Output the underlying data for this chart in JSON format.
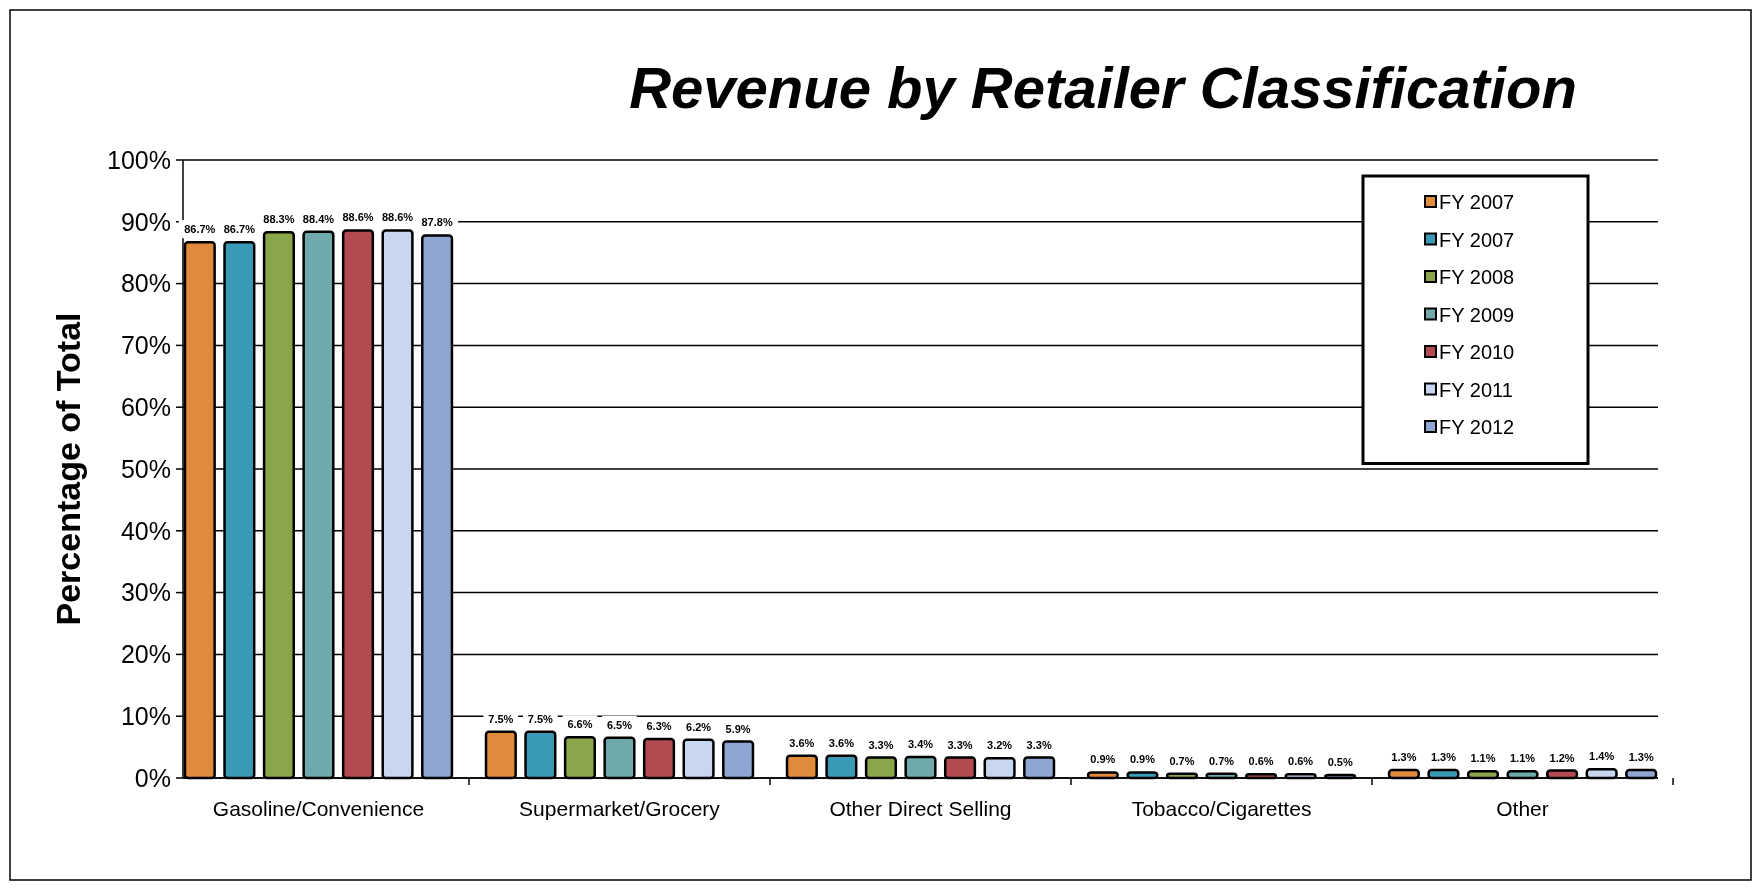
{
  "chart_data": {
    "type": "bar",
    "title": "Revenue by Retailer Classification",
    "ylabel": "Percentage of Total",
    "categories": [
      "Gasoline/Convenience",
      "Supermarket/Grocery",
      "Other Direct Selling",
      "Tobacco/Cigarettes",
      "Other"
    ],
    "series": [
      {
        "name": "FY 2007",
        "color": "#e08a3c",
        "values": [
          86.7,
          7.5,
          3.6,
          0.9,
          1.3
        ],
        "value_labels": [
          "86.7%",
          "7.5%",
          "3.6%",
          "0.9%",
          "1.3%"
        ]
      },
      {
        "name": "FY 2007",
        "color": "#3a9ab5",
        "values": [
          86.7,
          7.5,
          3.6,
          0.9,
          1.3
        ],
        "value_labels": [
          "86.7%",
          "7.5%",
          "3.6%",
          "0.9%",
          "1.3%"
        ]
      },
      {
        "name": "FY 2008",
        "color": "#8aa64a",
        "values": [
          88.3,
          6.6,
          3.3,
          0.7,
          1.1
        ],
        "value_labels": [
          "88.3%",
          "6.6%",
          "3.3%",
          "0.7%",
          "1.1%"
        ]
      },
      {
        "name": "FY 2009",
        "color": "#6fa9ab",
        "values": [
          88.4,
          6.5,
          3.4,
          0.7,
          1.1
        ],
        "value_labels": [
          "88.4%",
          "6.5%",
          "3.4%",
          "0.7%",
          "1.1%"
        ]
      },
      {
        "name": "FY 2010",
        "color": "#b34a52",
        "values": [
          88.6,
          6.3,
          3.3,
          0.6,
          1.2
        ],
        "value_labels": [
          "88.6%",
          "6.3%",
          "3.3%",
          "0.6%",
          "1.2%"
        ]
      },
      {
        "name": "FY 2011",
        "color": "#c9d6f0",
        "values": [
          88.6,
          6.2,
          3.2,
          0.6,
          1.4
        ],
        "value_labels": [
          "88.6%",
          "6.2%",
          "3.2%",
          "0.6%",
          "1.4%"
        ]
      },
      {
        "name": "FY 2012",
        "color": "#8fa6d3",
        "values": [
          87.8,
          5.9,
          3.3,
          0.5,
          1.3
        ],
        "value_labels": [
          "87.8%",
          "5.9%",
          "3.3%",
          "0.5%",
          "1.3%"
        ]
      }
    ],
    "ylim": [
      0,
      100
    ],
    "yticks": [
      {
        "value": 0,
        "label": "0%"
      },
      {
        "value": 10,
        "label": "10%"
      },
      {
        "value": 20,
        "label": "20%"
      },
      {
        "value": 30,
        "label": "30%"
      },
      {
        "value": 40,
        "label": "40%"
      },
      {
        "value": 50,
        "label": "50%"
      },
      {
        "value": 60,
        "label": "60%"
      },
      {
        "value": 70,
        "label": "70%"
      },
      {
        "value": 80,
        "label": "80%"
      },
      {
        "value": 90,
        "label": "90%"
      },
      {
        "value": 100,
        "label": "100%"
      }
    ],
    "grid": "y",
    "legend": "top right"
  }
}
